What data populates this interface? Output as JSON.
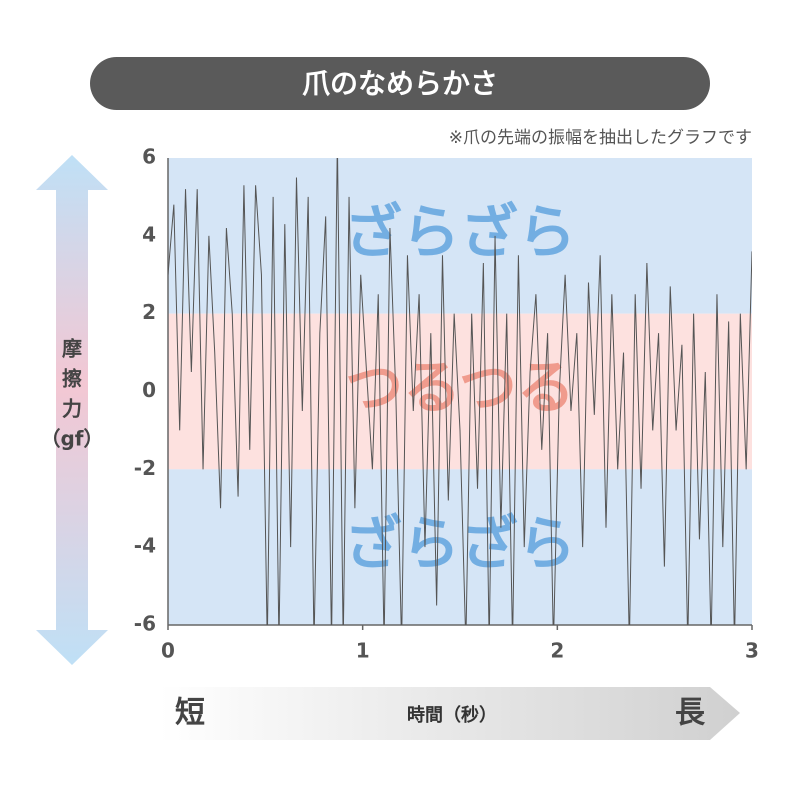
{
  "chart_data": {
    "type": "line",
    "title": "爪のなめらかさ",
    "note": "※爪の先端の振幅を抽出したグラフです",
    "ylabel": [
      "摩",
      "擦",
      "力",
      "（gf）"
    ],
    "xlabel": "時間（秒）",
    "x_start_label": "短",
    "x_end_label": "長",
    "xlim": [
      0,
      3
    ],
    "xticks": [
      0,
      1,
      2,
      3
    ],
    "ylim": [
      -6,
      6
    ],
    "yticks": [
      -6,
      -4,
      -2,
      0,
      2,
      4,
      6
    ],
    "bands": [
      {
        "label": "ざらざら",
        "range": [
          2,
          6
        ],
        "color": "#d5e5f6",
        "text_color": "#5aa0dd"
      },
      {
        "label": "つるつる",
        "range": [
          -2,
          2
        ],
        "color": "#fde1df",
        "text_color": "#ec8a78"
      },
      {
        "label": "ざらざら",
        "range": [
          -6,
          -2
        ],
        "color": "#d5e5f6",
        "text_color": "#5aa0dd"
      }
    ],
    "series": [
      {
        "color": "#555555",
        "x": [
          0,
          0.03,
          0.06,
          0.09,
          0.12,
          0.15,
          0.18,
          0.21,
          0.24,
          0.27,
          0.3,
          0.33,
          0.36,
          0.39,
          0.42,
          0.45,
          0.48,
          0.51,
          0.54,
          0.57,
          0.6,
          0.63,
          0.66,
          0.69,
          0.72,
          0.75,
          0.78,
          0.81,
          0.84,
          0.87,
          0.9,
          0.93,
          0.96,
          0.99,
          1.02,
          1.05,
          1.08,
          1.11,
          1.14,
          1.17,
          1.2,
          1.23,
          1.26,
          1.29,
          1.32,
          1.35,
          1.38,
          1.41,
          1.44,
          1.47,
          1.5,
          1.53,
          1.56,
          1.59,
          1.62,
          1.65,
          1.68,
          1.71,
          1.74,
          1.77,
          1.8,
          1.83,
          1.86,
          1.89,
          1.92,
          1.95,
          1.98,
          2.01,
          2.04,
          2.07,
          2.1,
          2.13,
          2.16,
          2.19,
          2.22,
          2.25,
          2.28,
          2.31,
          2.34,
          2.37,
          2.4,
          2.43,
          2.46,
          2.49,
          2.52,
          2.55,
          2.58,
          2.61,
          2.64,
          2.67,
          2.7,
          2.73,
          2.76,
          2.79,
          2.82,
          2.85,
          2.88,
          2.91,
          2.94,
          2.97,
          3
        ],
        "values": [
          3,
          4.8,
          -1,
          5.2,
          0.5,
          5.2,
          -2,
          4,
          1,
          -3,
          4.2,
          2,
          -2.7,
          5.3,
          -1.5,
          5.3,
          3,
          -6.5,
          5,
          -6.5,
          4.3,
          -4,
          5.5,
          -0.5,
          5,
          -6.5,
          1.5,
          4.5,
          -6.5,
          6.5,
          -6.5,
          5,
          -3,
          3,
          0.5,
          -2,
          2.5,
          -6.5,
          4.2,
          0,
          -6.5,
          3.5,
          -0.5,
          2.5,
          -4,
          1.5,
          -5.5,
          3.5,
          -2.8,
          2,
          -1,
          -6.5,
          2,
          -2.5,
          3.3,
          -6.5,
          4,
          -3.5,
          2,
          -6.5,
          3.5,
          -4,
          0.5,
          2.5,
          -1.5,
          1.5,
          -6.5,
          0,
          3,
          -0.5,
          1.5,
          -4,
          2.8,
          -0.6,
          3.5,
          -3.5,
          2.5,
          -2,
          1,
          -6.5,
          2.5,
          -2.5,
          3.3,
          -1,
          1.5,
          -4.5,
          2.7,
          -1,
          1.2,
          -6.5,
          2,
          -3.8,
          0.5,
          -6.5,
          2.5,
          -4,
          1.8,
          -6.5,
          2,
          -2,
          3.6
        ]
      }
    ]
  }
}
